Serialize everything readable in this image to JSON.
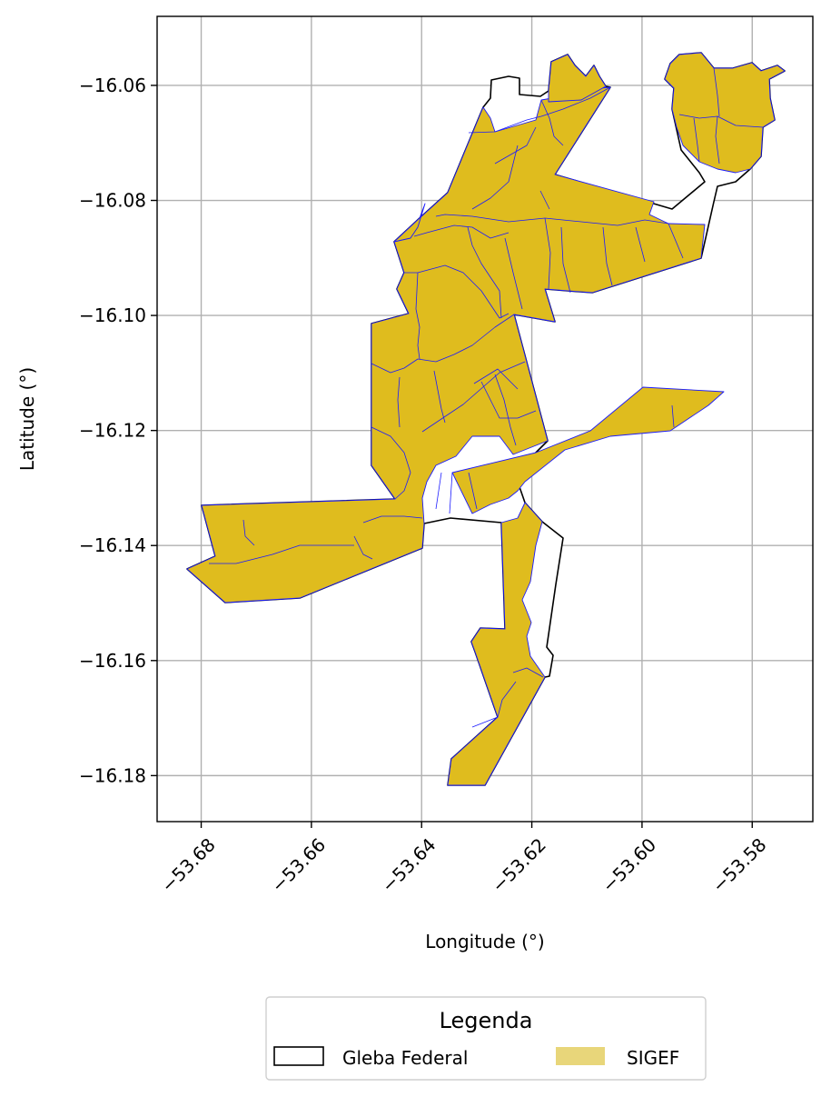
{
  "map": {
    "xlabel": "Longitude (°)",
    "ylabel": "Latitude (°)",
    "xlim": [
      -53.688,
      -53.569
    ],
    "ylim": [
      -16.188,
      -16.048
    ],
    "grid": true,
    "x_ticks": [
      {
        "value": -53.68,
        "label": "−53.68"
      },
      {
        "value": -53.66,
        "label": "−53.66"
      },
      {
        "value": -53.64,
        "label": "−53.64"
      },
      {
        "value": -53.62,
        "label": "−53.62"
      },
      {
        "value": -53.6,
        "label": "−53.60"
      },
      {
        "value": -53.58,
        "label": "−53.58"
      }
    ],
    "y_ticks": [
      {
        "value": -16.06,
        "label": "−16.06"
      },
      {
        "value": -16.08,
        "label": "−16.08"
      },
      {
        "value": -16.1,
        "label": "−16.10"
      },
      {
        "value": -16.12,
        "label": "−16.12"
      },
      {
        "value": -16.14,
        "label": "−16.14"
      },
      {
        "value": -16.16,
        "label": "−16.16"
      },
      {
        "value": -16.18,
        "label": "−16.18"
      }
    ]
  },
  "layers": {
    "gleba": {
      "label": "Gleba Federal",
      "stroke_color": "#000000",
      "fill_color": "#ffffff"
    },
    "sigef": {
      "label": "SIGEF",
      "fill_color": "#dfbc1e",
      "legend_fill_color": "#e8d67a",
      "edge_color": "#1a1aff"
    }
  },
  "legend": {
    "title": "Legenda",
    "placement": "bottom-center"
  }
}
